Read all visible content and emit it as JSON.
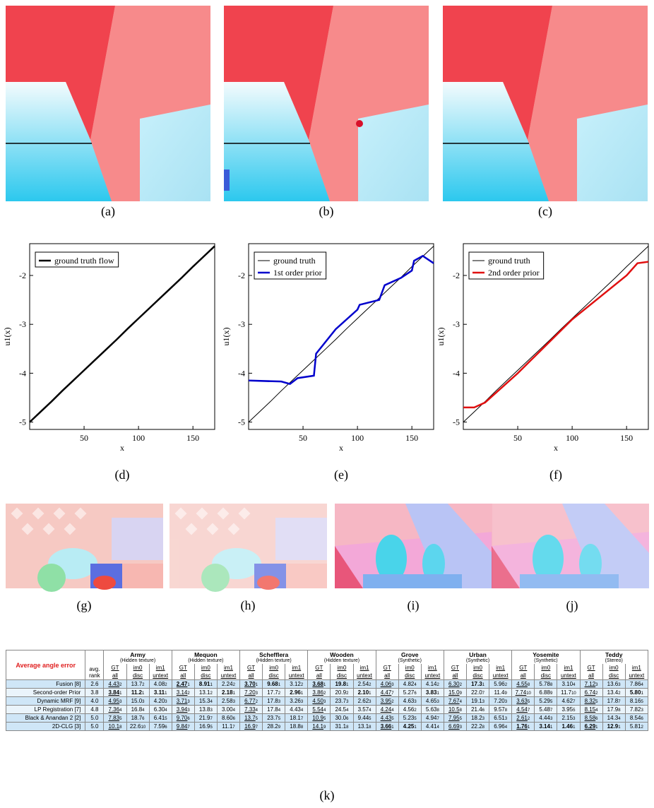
{
  "panels_top": [
    "(a)",
    "(b)",
    "(c)"
  ],
  "panels_bottom": [
    "(g)",
    "(h)",
    "(i)",
    "(j)"
  ],
  "chart_data": [
    {
      "type": "line",
      "caption": "(d)",
      "xlabel": "x",
      "ylabel": "u1(x)",
      "xlim": [
        0,
        170
      ],
      "ylim": [
        -5.15,
        -1.35
      ],
      "xticks": [
        50,
        100,
        150
      ],
      "yticks": [
        -5,
        -4,
        -3,
        -2
      ],
      "legend": "upper left",
      "series": [
        {
          "name": "ground truth flow",
          "color": "#000000",
          "width": 2.5,
          "x": [
            0,
            10,
            20,
            30,
            40,
            50,
            60,
            70,
            80,
            90,
            100,
            110,
            120,
            130,
            140,
            150,
            160,
            170
          ],
          "values": [
            -5.0,
            -4.79,
            -4.58,
            -4.36,
            -4.15,
            -3.94,
            -3.73,
            -3.52,
            -3.31,
            -3.09,
            -2.88,
            -2.67,
            -2.46,
            -2.25,
            -2.04,
            -1.82,
            -1.61,
            -1.4
          ]
        }
      ]
    },
    {
      "type": "line",
      "caption": "(e)",
      "xlabel": "x",
      "ylabel": "u1(x)",
      "xlim": [
        0,
        170
      ],
      "ylim": [
        -5.15,
        -1.35
      ],
      "xticks": [
        50,
        100,
        150
      ],
      "yticks": [
        -5,
        -4,
        -3,
        -2
      ],
      "legend": "upper left",
      "series": [
        {
          "name": "ground truth",
          "color": "#000000",
          "width": 1,
          "x": [
            0,
            10,
            20,
            30,
            40,
            50,
            60,
            70,
            80,
            90,
            100,
            110,
            120,
            130,
            140,
            150,
            160,
            170
          ],
          "values": [
            -5.0,
            -4.79,
            -4.58,
            -4.36,
            -4.15,
            -3.94,
            -3.73,
            -3.52,
            -3.31,
            -3.09,
            -2.88,
            -2.67,
            -2.46,
            -2.25,
            -2.04,
            -1.82,
            -1.61,
            -1.4
          ]
        },
        {
          "name": "1st order prior",
          "color": "#0000cc",
          "width": 2.5,
          "x": [
            0,
            30,
            38,
            45,
            60,
            62,
            80,
            100,
            102,
            120,
            125,
            140,
            150,
            152,
            160,
            170
          ],
          "values": [
            -4.15,
            -4.17,
            -4.22,
            -4.1,
            -4.05,
            -3.6,
            -3.1,
            -2.7,
            -2.6,
            -2.5,
            -2.2,
            -2.05,
            -1.9,
            -1.7,
            -1.6,
            -1.75
          ]
        }
      ]
    },
    {
      "type": "line",
      "caption": "(f)",
      "xlabel": "x",
      "ylabel": "u1(x)",
      "xlim": [
        0,
        170
      ],
      "ylim": [
        -5.15,
        -1.35
      ],
      "xticks": [
        50,
        100,
        150
      ],
      "yticks": [
        -5,
        -4,
        -3,
        -2
      ],
      "legend": "upper left",
      "series": [
        {
          "name": "ground truth",
          "color": "#000000",
          "width": 1,
          "x": [
            0,
            10,
            20,
            30,
            40,
            50,
            60,
            70,
            80,
            90,
            100,
            110,
            120,
            130,
            140,
            150,
            160,
            170
          ],
          "values": [
            -5.0,
            -4.79,
            -4.58,
            -4.36,
            -4.15,
            -3.94,
            -3.73,
            -3.52,
            -3.31,
            -3.09,
            -2.88,
            -2.67,
            -2.46,
            -2.25,
            -2.04,
            -1.82,
            -1.61,
            -1.4
          ]
        },
        {
          "name": "2nd order prior",
          "color": "#e01010",
          "width": 2.5,
          "x": [
            0,
            10,
            20,
            50,
            100,
            150,
            160,
            170
          ],
          "values": [
            -4.7,
            -4.7,
            -4.6,
            -4.0,
            -2.9,
            -2.0,
            -1.75,
            -1.72
          ]
        }
      ]
    }
  ],
  "table": {
    "caption": "(k)",
    "corner": "Average angle error",
    "rank_header": "avg. rank",
    "datasets": [
      {
        "name": "Army",
        "subtitle": "(Hidden texture)",
        "top": [
          "GT",
          "im0",
          "im1"
        ],
        "bottom": [
          "all",
          "disc",
          "untext"
        ]
      },
      {
        "name": "Mequon",
        "subtitle": "(Hidden texture)",
        "top": [
          "GT",
          "im0",
          "im1"
        ],
        "bottom": [
          "all",
          "disc",
          "untext"
        ]
      },
      {
        "name": "Schefflera",
        "subtitle": "(Hidden texture)",
        "top": [
          "GT",
          "im0",
          "im1"
        ],
        "bottom": [
          "all",
          "disc",
          "untext"
        ]
      },
      {
        "name": "Wooden",
        "subtitle": "(Hidden texture)",
        "top": [
          "GT",
          "im0",
          "im1"
        ],
        "bottom": [
          "all",
          "disc",
          "untext"
        ]
      },
      {
        "name": "Grove",
        "subtitle": "(Synthetic)",
        "top": [
          "GT",
          "im0",
          "im1"
        ],
        "bottom": [
          "all",
          "disc",
          "untext"
        ]
      },
      {
        "name": "Urban",
        "subtitle": "(Synthetic)",
        "top": [
          "GT",
          "im0",
          "im1"
        ],
        "bottom": [
          "all",
          "disc",
          "untext"
        ]
      },
      {
        "name": "Yosemite",
        "subtitle": "(Synthetic)",
        "top": [
          "GT",
          "im0",
          "im1"
        ],
        "bottom": [
          "all",
          "disc",
          "untext"
        ]
      },
      {
        "name": "Teddy",
        "subtitle": "(Stereo)",
        "top": [
          "GT",
          "im0",
          "im1"
        ],
        "bottom": [
          "all",
          "disc",
          "untext"
        ]
      }
    ],
    "rows": [
      {
        "method": "Fusion [8]",
        "rank": "2.6",
        "cells": [
          [
            "4.43",
            "2"
          ],
          [
            "13.7",
            "2"
          ],
          [
            "4.08",
            "2"
          ],
          [
            "2.47",
            "1"
          ],
          [
            "8.91",
            "1"
          ],
          [
            "2.24",
            "2"
          ],
          [
            "3.70",
            "1"
          ],
          [
            "9.68",
            "1"
          ],
          [
            "3.12",
            "2"
          ],
          [
            "3.68",
            "1"
          ],
          [
            "19.8",
            "1"
          ],
          [
            "2.54",
            "2"
          ],
          [
            "4.06",
            "3"
          ],
          [
            "4.82",
            "4"
          ],
          [
            "4.14",
            "2"
          ],
          [
            "6.30",
            "2"
          ],
          [
            "17.3",
            "1"
          ],
          [
            "5.96",
            "2"
          ],
          [
            "4.55",
            "8"
          ],
          [
            "5.78",
            "8"
          ],
          [
            "3.10",
            "4"
          ],
          [
            "7.12",
            "3"
          ],
          [
            "13.6",
            "3"
          ],
          [
            "7.86",
            "4"
          ]
        ]
      },
      {
        "method": "Second-order Prior",
        "rank": "3.8",
        "cells": [
          [
            "3.84",
            "1"
          ],
          [
            "11.2",
            "1"
          ],
          [
            "3.11",
            "1"
          ],
          [
            "3.14",
            "2"
          ],
          [
            "13.1",
            "2"
          ],
          [
            "2.18",
            "1"
          ],
          [
            "7.20",
            "3"
          ],
          [
            "17.7",
            "2"
          ],
          [
            "2.96",
            "1"
          ],
          [
            "3.86",
            "2"
          ],
          [
            "20.9",
            "2"
          ],
          [
            "2.10",
            "1"
          ],
          [
            "4.47",
            "7"
          ],
          [
            "5.27",
            "6"
          ],
          [
            "3.83",
            "1"
          ],
          [
            "15.0",
            "9"
          ],
          [
            "22.0",
            "7"
          ],
          [
            "11.4",
            "9"
          ],
          [
            "7.74",
            "10"
          ],
          [
            "6.88",
            "9"
          ],
          [
            "11.7",
            "10"
          ],
          [
            "6.74",
            "2"
          ],
          [
            "13.4",
            "2"
          ],
          [
            "5.80",
            "1"
          ]
        ]
      },
      {
        "method": "Dynamic MRF [9]",
        "rank": "4.0",
        "cells": [
          [
            "4.95",
            "3"
          ],
          [
            "15.0",
            "3"
          ],
          [
            "4.20",
            "3"
          ],
          [
            "3.71",
            "3"
          ],
          [
            "15.3",
            "4"
          ],
          [
            "2.58",
            "3"
          ],
          [
            "6.77",
            "2"
          ],
          [
            "17.8",
            "3"
          ],
          [
            "3.26",
            "3"
          ],
          [
            "4.50",
            "3"
          ],
          [
            "23.7",
            "3"
          ],
          [
            "2.62",
            "3"
          ],
          [
            "3.95",
            "2"
          ],
          [
            "4.63",
            "3"
          ],
          [
            "4.65",
            "3"
          ],
          [
            "7.67",
            "4"
          ],
          [
            "19.1",
            "3"
          ],
          [
            "7.20",
            "3"
          ],
          [
            "3.63",
            "5"
          ],
          [
            "5.29",
            "5"
          ],
          [
            "4.62",
            "7"
          ],
          [
            "8.32",
            "5"
          ],
          [
            "17.8",
            "7"
          ],
          [
            "8.16",
            "5"
          ]
        ]
      },
      {
        "method": "LP Registration [7]",
        "rank": "4.8",
        "cells": [
          [
            "7.36",
            "4"
          ],
          [
            "16.8",
            "4"
          ],
          [
            "6.30",
            "4"
          ],
          [
            "3.94",
            "3"
          ],
          [
            "13.8",
            "3"
          ],
          [
            "3.00",
            "4"
          ],
          [
            "7.33",
            "4"
          ],
          [
            "17.8",
            "4"
          ],
          [
            "4.43",
            "4"
          ],
          [
            "5.54",
            "4"
          ],
          [
            "24.5",
            "4"
          ],
          [
            "3.57",
            "4"
          ],
          [
            "4.24",
            "4"
          ],
          [
            "4.56",
            "2"
          ],
          [
            "5.63",
            "8"
          ],
          [
            "10.5",
            "8"
          ],
          [
            "21.4",
            "6"
          ],
          [
            "9.57",
            "8"
          ],
          [
            "4.54",
            "7"
          ],
          [
            "5.48",
            "7"
          ],
          [
            "3.95",
            "5"
          ],
          [
            "8.15",
            "4"
          ],
          [
            "17.9",
            "8"
          ],
          [
            "7.82",
            "3"
          ]
        ]
      },
      {
        "method": "Black & Anandan 2 [2]",
        "rank": "5.0",
        "cells": [
          [
            "7.83",
            "5"
          ],
          [
            "18.7",
            "6"
          ],
          [
            "6.41",
            "5"
          ],
          [
            "9.70",
            "6"
          ],
          [
            "21.9",
            "7"
          ],
          [
            "8.60",
            "6"
          ],
          [
            "13.7",
            "5"
          ],
          [
            "23.7",
            "5"
          ],
          [
            "18.1",
            "7"
          ],
          [
            "10.9",
            "5"
          ],
          [
            "30.0",
            "6"
          ],
          [
            "9.44",
            "5"
          ],
          [
            "4.43",
            "5"
          ],
          [
            "5.23",
            "5"
          ],
          [
            "4.94",
            "7"
          ],
          [
            "7.95",
            "5"
          ],
          [
            "18.2",
            "3"
          ],
          [
            "6.51",
            "3"
          ],
          [
            "2.61",
            "2"
          ],
          [
            "4.44",
            "3"
          ],
          [
            "2.15",
            "3"
          ],
          [
            "8.58",
            "6"
          ],
          [
            "14.3",
            "4"
          ],
          [
            "8.54",
            "6"
          ]
        ]
      },
      {
        "method": "2D-CLG [3]",
        "rank": "5.0",
        "cells": [
          [
            "10.1",
            "8"
          ],
          [
            "22.6",
            "10"
          ],
          [
            "7.59",
            "6"
          ],
          [
            "9.84",
            "7"
          ],
          [
            "16.9",
            "5"
          ],
          [
            "11.1",
            "7"
          ],
          [
            "16.9",
            "7"
          ],
          [
            "28.2",
            "9"
          ],
          [
            "18.8",
            "8"
          ],
          [
            "14.1",
            "9"
          ],
          [
            "31.1",
            "8"
          ],
          [
            "13.1",
            "8"
          ],
          [
            "3.66",
            "1"
          ],
          [
            "4.25",
            "1"
          ],
          [
            "4.41",
            "4"
          ],
          [
            "6.69",
            "3"
          ],
          [
            "22.2",
            "8"
          ],
          [
            "6.96",
            "4"
          ],
          [
            "1.76",
            "1"
          ],
          [
            "3.14",
            "1"
          ],
          [
            "1.46",
            "1"
          ],
          [
            "6.29",
            "1"
          ],
          [
            "12.9",
            "1"
          ],
          [
            "5.81",
            "2"
          ]
        ]
      }
    ]
  }
}
